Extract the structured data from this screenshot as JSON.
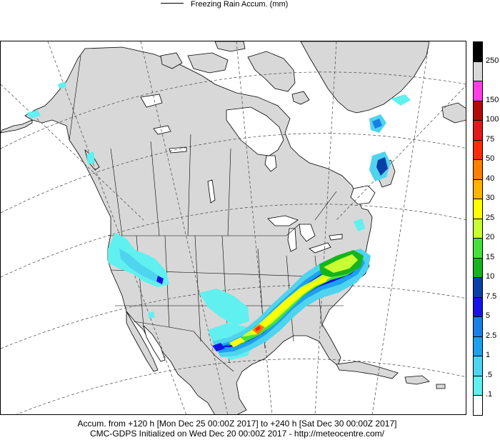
{
  "legend": {
    "label": "Freezing Rain Accum. (mm)"
  },
  "colorbar": {
    "levels": [
      {
        "label": "250",
        "color": "#000000"
      },
      {
        "label": "",
        "color": "#d8d8d8"
      },
      {
        "label": "150",
        "color": "#ff3fe4"
      },
      {
        "label": "100",
        "color": "#b20a0a"
      },
      {
        "label": "75",
        "color": "#e01b1b"
      },
      {
        "label": "50",
        "color": "#ff2a0a"
      },
      {
        "label": "40",
        "color": "#ff7f00"
      },
      {
        "label": "30",
        "color": "#ffb400"
      },
      {
        "label": "25",
        "color": "#ffff00"
      },
      {
        "label": "20",
        "color": "#c8ff32"
      },
      {
        "label": "15",
        "color": "#46e03c"
      },
      {
        "label": "10",
        "color": "#15b41c"
      },
      {
        "label": "7.5",
        "color": "#0a3fa8"
      },
      {
        "label": "5",
        "color": "#1414e6"
      },
      {
        "label": "2.5",
        "color": "#1a7fe6"
      },
      {
        "label": "1",
        "color": "#1ea0f0"
      },
      {
        "label": ".5",
        "color": "#4fd4ef"
      },
      {
        "label": ".1",
        "color": "#5ff0ef"
      },
      {
        "label": "",
        "color": "#ffffff"
      }
    ]
  },
  "footer": {
    "line1": "Accum. from +120 h [Mon Dec 25 00:00Z 2017] to +240 h [Sat Dec 30 00:00Z 2017]",
    "line2": "CMC-GDPS Initialized on Wed Dec 20 00:00Z 2017 - http://meteocentre.com/"
  },
  "map": {
    "land_color": "#d8d8d8",
    "water_color": "#ffffff"
  }
}
